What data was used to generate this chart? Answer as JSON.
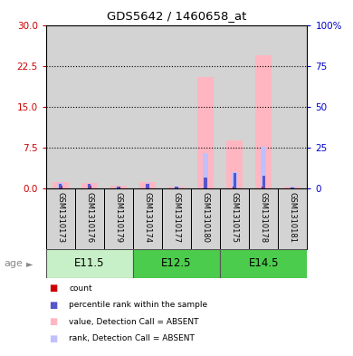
{
  "title": "GDS5642 / 1460658_at",
  "samples": [
    "GSM1310173",
    "GSM1310176",
    "GSM1310179",
    "GSM1310174",
    "GSM1310177",
    "GSM1310180",
    "GSM1310175",
    "GSM1310178",
    "GSM1310181"
  ],
  "value_absent": [
    1.2,
    1.0,
    0.55,
    1.2,
    0.45,
    20.5,
    8.8,
    24.5,
    0.35
  ],
  "rank_absent_pct": [
    3.5,
    3.0,
    1.5,
    3.5,
    1.5,
    22.0,
    10.0,
    25.5,
    1.0
  ],
  "count_red": [
    0.5,
    0.5,
    0.3,
    0.5,
    0.25,
    0.3,
    0.3,
    0.3,
    0.15
  ],
  "rank_blue_pct": [
    3.0,
    2.8,
    1.2,
    3.0,
    1.2,
    6.8,
    9.8,
    7.8,
    0.8
  ],
  "ylim_left": [
    0,
    30
  ],
  "ylim_right": [
    0,
    100
  ],
  "yticks_left": [
    0,
    7.5,
    15,
    22.5,
    30
  ],
  "yticks_right": [
    0,
    25,
    50,
    75,
    100
  ],
  "left_tick_color": "#cc0000",
  "right_tick_color": "#0000cc",
  "value_absent_color": "#ffb6c1",
  "rank_absent_color": "#c0c0ff",
  "count_color": "#cc0000",
  "rank_color": "#5555cc",
  "tick_bg": "#d3d3d3",
  "age_groups": [
    {
      "label": "E11.5",
      "start": 0,
      "end": 2,
      "color": "#c8f0c8"
    },
    {
      "label": "E12.5",
      "start": 3,
      "end": 5,
      "color": "#4ccc4c"
    },
    {
      "label": "E14.5",
      "start": 6,
      "end": 8,
      "color": "#4ccc4c"
    }
  ],
  "legend_items": [
    {
      "label": "count",
      "color": "#cc0000"
    },
    {
      "label": "percentile rank within the sample",
      "color": "#5555cc"
    },
    {
      "label": "value, Detection Call = ABSENT",
      "color": "#ffb6c1"
    },
    {
      "label": "rank, Detection Call = ABSENT",
      "color": "#c0c0ff"
    }
  ]
}
